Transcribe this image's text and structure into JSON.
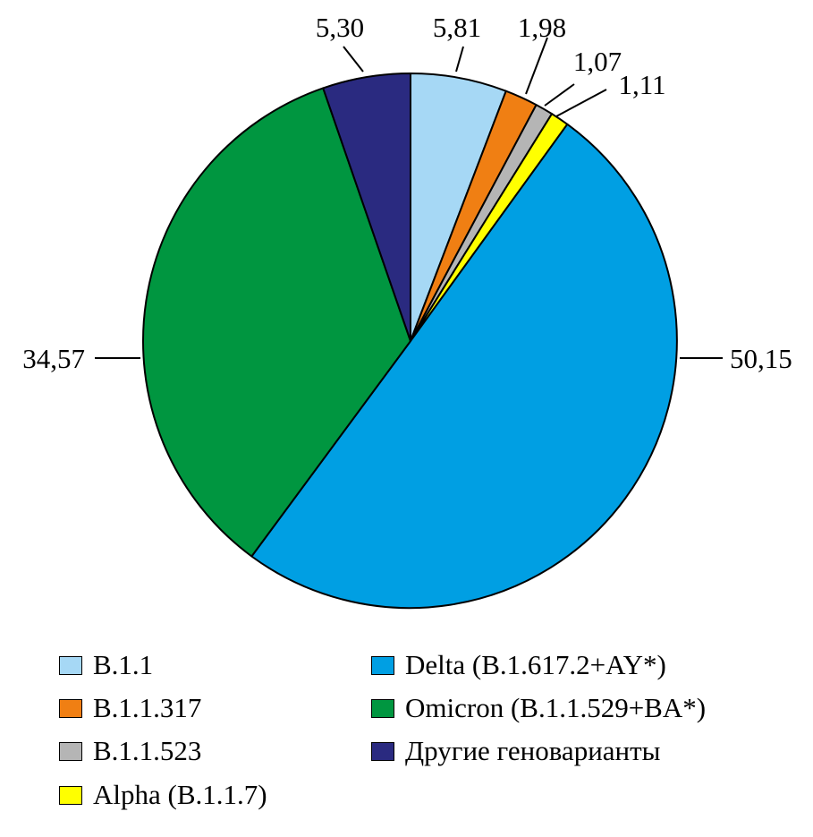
{
  "chart_data": {
    "type": "pie",
    "title": "",
    "slices": [
      {
        "name": "B.1.1",
        "value": 5.81,
        "label": "5,81",
        "color": "#a6d8f5"
      },
      {
        "name": "B.1.1.317",
        "value": 1.98,
        "label": "1,98",
        "color": "#f07f13"
      },
      {
        "name": "B.1.1.523",
        "value": 1.07,
        "label": "1,07",
        "color": "#b5b5b5"
      },
      {
        "name": "Alpha (B.1.1.7)",
        "value": 1.11,
        "label": "1,11",
        "color": "#ffff00"
      },
      {
        "name": "Delta (B.1.617.2+AY*)",
        "value": 50.15,
        "label": "50,15",
        "color": "#009fe3"
      },
      {
        "name": "Omicron (B.1.1.529+BA*)",
        "value": 34.57,
        "label": "34,57",
        "color": "#009640"
      },
      {
        "name": "Другие геноварианты",
        "value": 5.3,
        "label": "5,30",
        "color": "#2a2a80"
      }
    ],
    "legend": {
      "placement": "bottom",
      "items": [
        {
          "label": "B.1.1",
          "color": "#a6d8f5"
        },
        {
          "label": "B.1.1.317",
          "color": "#f07f13"
        },
        {
          "label": "B.1.1.523",
          "color": "#b5b5b5"
        },
        {
          "label": "Alpha (B.1.1.7)",
          "color": "#ffff00"
        },
        {
          "label": "Delta (B.1.617.2+AY*)",
          "color": "#009fe3"
        },
        {
          "label": "Omicron (B.1.1.529+BA*)",
          "color": "#009640"
        },
        {
          "label": "Другие геноварианты",
          "color": "#2a2a80"
        }
      ]
    }
  }
}
